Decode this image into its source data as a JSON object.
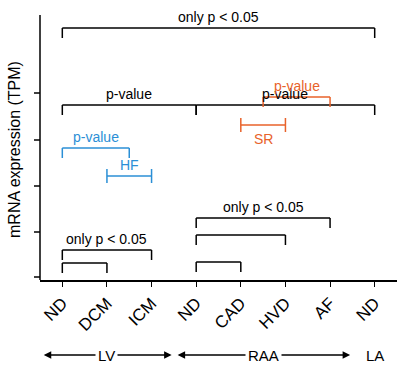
{
  "chart_data": {
    "type": "brackets",
    "y_label": "mRNA expression (TPM)",
    "tick_labels": "x",
    "categories": [
      "ND",
      "DCM",
      "ICM",
      "ND",
      "CAD",
      "HVD",
      "AF",
      "ND"
    ],
    "groups": [
      {
        "label": "LV"
      },
      {
        "label": "RAA"
      },
      {
        "label": "LA"
      }
    ],
    "annotations": [
      {
        "text": "only p < 0.05",
        "color": "#000000"
      },
      {
        "text": "p-value",
        "color": "#000000"
      },
      {
        "text": "p-value",
        "color": "#000000"
      },
      {
        "text": "p-value",
        "color": "#2b8fd6"
      },
      {
        "text": "HF",
        "color": "#2b8fd6"
      },
      {
        "text": "SR",
        "color": "#e8622a"
      },
      {
        "text": "p-value",
        "color": "#e8622a"
      },
      {
        "text": "only p < 0.05",
        "color": "#000000"
      },
      {
        "text": "only p < 0.05",
        "color": "#000000"
      }
    ]
  }
}
